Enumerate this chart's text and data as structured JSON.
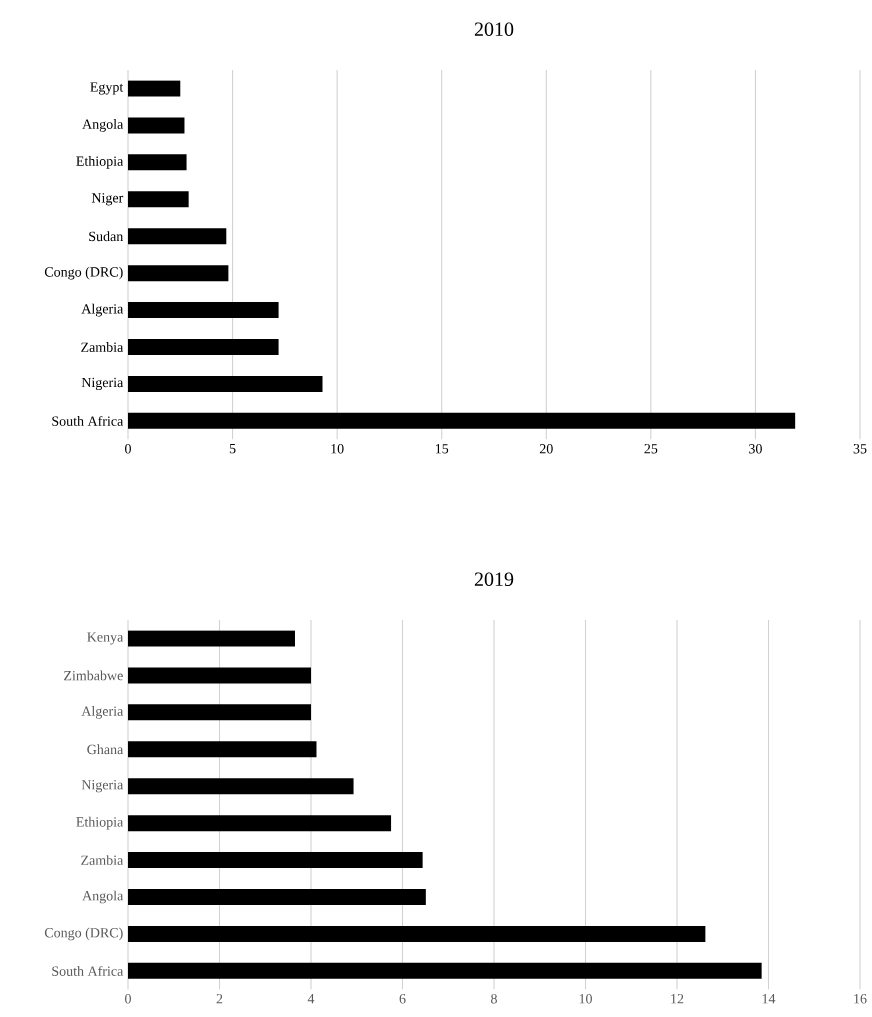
{
  "chart_data": [
    {
      "type": "bar",
      "title": "2010",
      "orientation": "horizontal",
      "categories": [
        "Egypt",
        "Angola",
        "Ethiopia",
        "Niger",
        "Sudan",
        "Congo (DRC)",
        "Algeria",
        "Zambia",
        "Nigeria",
        "South Africa"
      ],
      "values": [
        2.5,
        2.7,
        2.8,
        2.9,
        4.7,
        4.8,
        7.2,
        7.2,
        9.3,
        31.9
      ],
      "color": "#000000",
      "xlim": [
        0,
        35
      ],
      "xticks": [
        0,
        5,
        10,
        15,
        20,
        25,
        30,
        35
      ],
      "grid": "x"
    },
    {
      "type": "bar",
      "title": "2019",
      "orientation": "horizontal",
      "categories": [
        "Kenya",
        "Zimbabwe",
        "Algeria",
        "Ghana",
        "Nigeria",
        "Ethiopia",
        "Zambia",
        "Angola",
        "Congo (DRC)",
        "South Africa"
      ],
      "values": [
        3.65,
        4.0,
        4.0,
        4.12,
        4.93,
        5.75,
        6.44,
        6.51,
        12.62,
        13.85
      ],
      "color": "#000000",
      "xlim": [
        0,
        16
      ],
      "xticks": [
        0,
        2,
        4,
        6,
        8,
        10,
        12,
        14,
        16
      ],
      "grid": "x"
    }
  ]
}
